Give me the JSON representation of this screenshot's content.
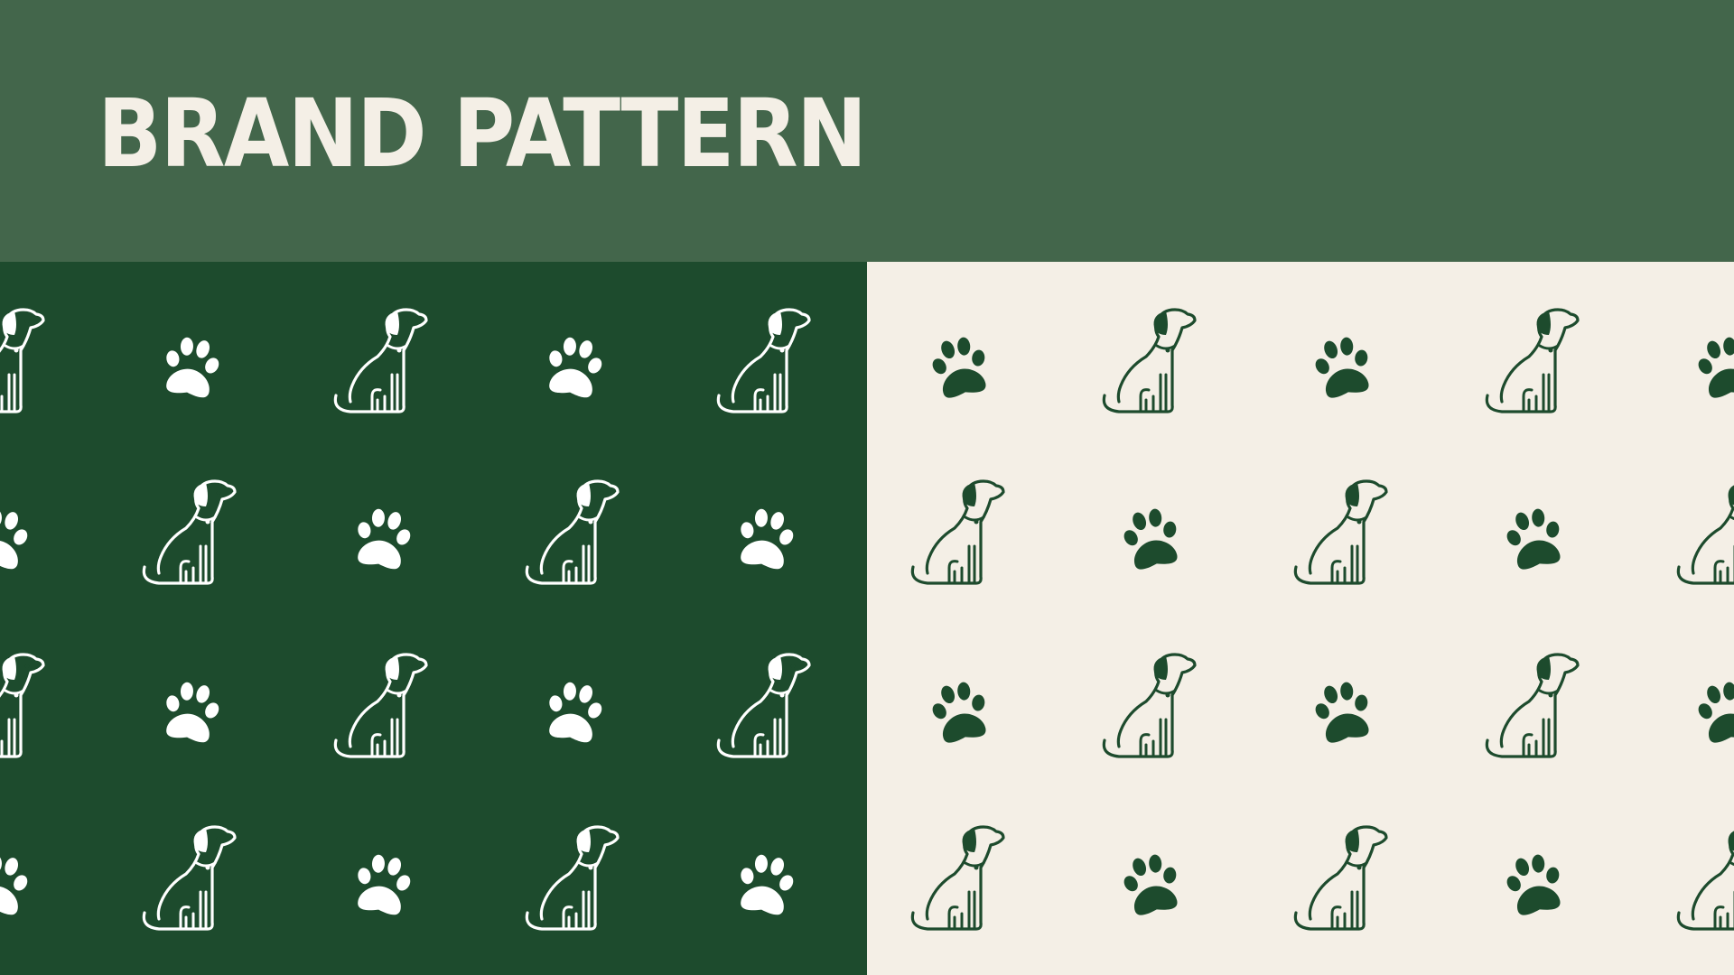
{
  "header": {
    "title": "BRAND PATTERN"
  },
  "colors": {
    "header_bg": "#43664b",
    "dark_panel_bg": "#1d4b2d",
    "light_panel_bg": "#f4efe6",
    "dark_motif": "#ffffff",
    "light_motif": "#1d4b2d"
  },
  "patterns": [
    {
      "panel": "dark",
      "icons": [
        "dog-icon",
        "paw-print-icon"
      ]
    },
    {
      "panel": "light",
      "icons": [
        "dog-icon",
        "paw-print-icon"
      ]
    }
  ]
}
